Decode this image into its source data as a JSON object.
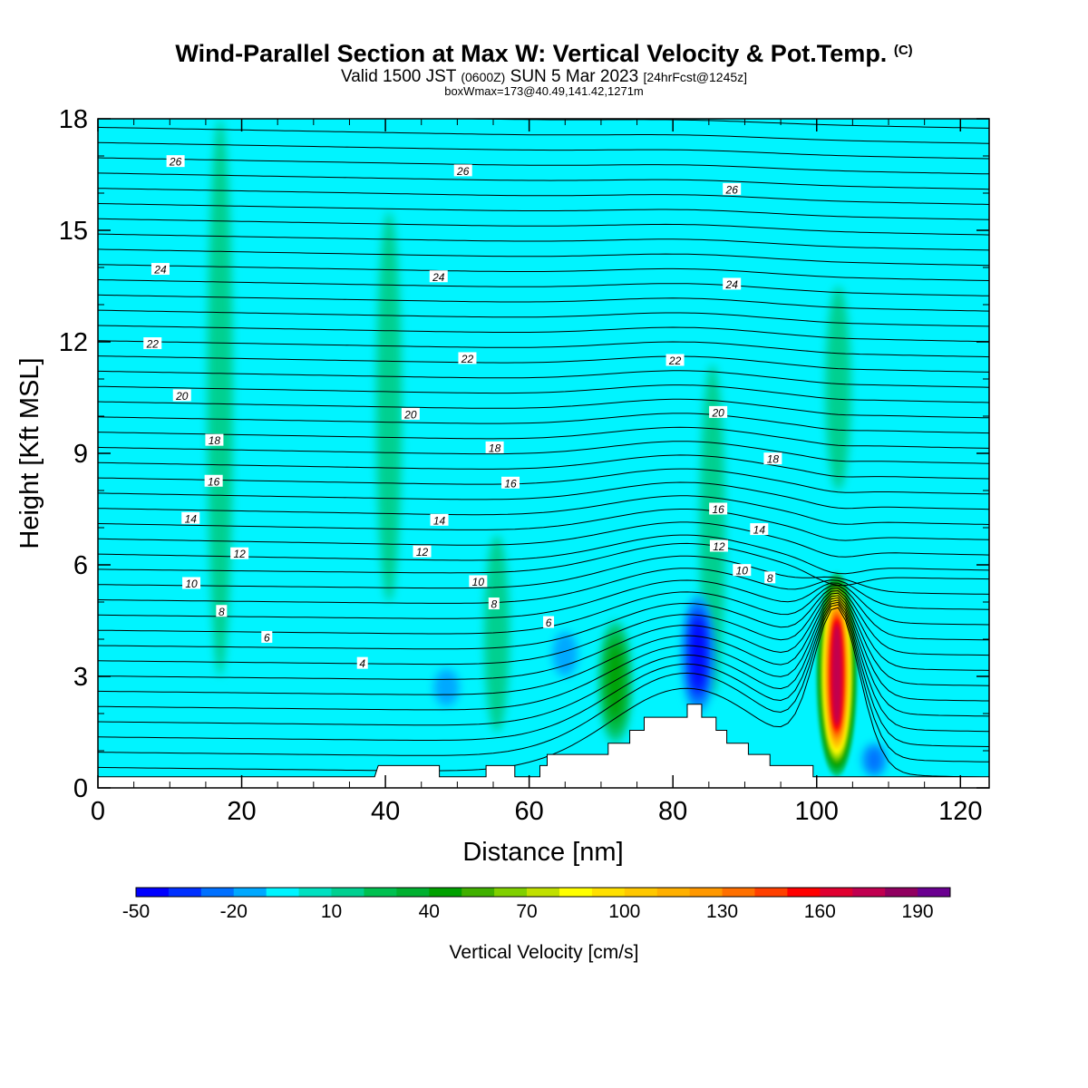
{
  "header": {
    "title": "Wind-Parallel Section at Max W: Vertical Velocity & Pot.Temp.",
    "title_mark": "(C)",
    "valid_a": "Valid 1500 JST",
    "valid_b": "(0600Z)",
    "valid_c": "SUN 5 Mar 2023",
    "valid_d": "[24hrFcst@1245z]",
    "boxline": "boxWmax=173@40.49,141.42,1271m"
  },
  "chart_data": {
    "type": "heatmap",
    "title": "Wind-Parallel Section at Max W: Vertical Velocity & Pot.Temp.",
    "xlabel": "Distance [nm]",
    "ylabel": "Height [Kft MSL]",
    "xlim": [
      0,
      124
    ],
    "ylim": [
      0,
      18
    ],
    "x_ticks": [
      "0",
      "20",
      "40",
      "60",
      "80",
      "100",
      "120"
    ],
    "y_ticks": [
      "0",
      "3",
      "6",
      "9",
      "12",
      "15",
      "18"
    ],
    "background_value_cms": 0,
    "colorbar": {
      "label": "Vertical Velocity [cm/s]",
      "tick_labels": [
        "-50",
        "-20",
        "10",
        "40",
        "70",
        "100",
        "130",
        "160",
        "190"
      ],
      "levels": [
        -50,
        -40,
        -30,
        -20,
        -10,
        0,
        10,
        20,
        30,
        40,
        50,
        60,
        70,
        80,
        90,
        100,
        110,
        120,
        130,
        140,
        150,
        160,
        170,
        180,
        190,
        200
      ],
      "colors": [
        "#0000ff",
        "#0030ff",
        "#0070ff",
        "#00a8ff",
        "#00f4ff",
        "#00e0c0",
        "#00d090",
        "#00c050",
        "#00b030",
        "#00a000",
        "#40b000",
        "#80d000",
        "#c0e000",
        "#ffff00",
        "#ffe000",
        "#ffc800",
        "#ffb000",
        "#ff9800",
        "#ff7000",
        "#ff4000",
        "#ff0000",
        "#e00030",
        "#c00050",
        "#900060",
        "#6a0090"
      ]
    },
    "w_features": [
      {
        "kind": "updraft_core",
        "x": 102.8,
        "z_bottom": 0.3,
        "z_top": 5.8,
        "max_cms": 173
      },
      {
        "kind": "updraft",
        "x": 72,
        "z_bottom": 1.2,
        "z_top": 4.5,
        "max_cms": 45
      },
      {
        "kind": "updraft",
        "x": 55.5,
        "z_bottom": 1.5,
        "z_top": 6.8,
        "max_cms": 15
      },
      {
        "kind": "updraft",
        "x": 85.5,
        "z_bottom": 2.5,
        "z_top": 11.4,
        "max_cms": 15
      },
      {
        "kind": "updraft",
        "x": 103,
        "z_bottom": 8,
        "z_top": 13.5,
        "max_cms": 15
      },
      {
        "kind": "updraft",
        "x": 40.5,
        "z_bottom": 5,
        "z_top": 15.5,
        "max_cms": 12
      },
      {
        "kind": "updraft",
        "x": 17,
        "z_bottom": 3,
        "z_top": 18,
        "max_cms": 12
      },
      {
        "kind": "downdraft",
        "x": 83.5,
        "z_bottom": 2,
        "z_top": 5.2,
        "max_cms": -45
      },
      {
        "kind": "downdraft",
        "x": 48.5,
        "z_bottom": 2.2,
        "z_top": 3.2,
        "max_cms": -15
      },
      {
        "kind": "downdraft",
        "x": 65,
        "z_bottom": 3,
        "z_top": 4.2,
        "max_cms": -15
      },
      {
        "kind": "downdraft",
        "x": 108,
        "z_bottom": 0.3,
        "z_top": 1.2,
        "max_cms": -25
      }
    ],
    "terrain_kft": [
      {
        "x": 0,
        "h": 0.3
      },
      {
        "x": 38.5,
        "h": 0.3
      },
      {
        "x": 39,
        "h": 0.6
      },
      {
        "x": 47.5,
        "h": 0.6
      },
      {
        "x": 47.5,
        "h": 0.3
      },
      {
        "x": 54,
        "h": 0.3
      },
      {
        "x": 54,
        "h": 0.6
      },
      {
        "x": 58,
        "h": 0.6
      },
      {
        "x": 58,
        "h": 0.3
      },
      {
        "x": 61.5,
        "h": 0.3
      },
      {
        "x": 61.5,
        "h": 0.6
      },
      {
        "x": 62.5,
        "h": 0.6
      },
      {
        "x": 62.5,
        "h": 0.9
      },
      {
        "x": 71,
        "h": 0.9
      },
      {
        "x": 71,
        "h": 1.2
      },
      {
        "x": 74,
        "h": 1.2
      },
      {
        "x": 74,
        "h": 1.55
      },
      {
        "x": 76,
        "h": 1.55
      },
      {
        "x": 76,
        "h": 1.9
      },
      {
        "x": 82,
        "h": 1.9
      },
      {
        "x": 82,
        "h": 2.25
      },
      {
        "x": 84,
        "h": 2.25
      },
      {
        "x": 84,
        "h": 1.9
      },
      {
        "x": 86,
        "h": 1.9
      },
      {
        "x": 86,
        "h": 1.55
      },
      {
        "x": 87.5,
        "h": 1.55
      },
      {
        "x": 87.5,
        "h": 1.2
      },
      {
        "x": 90.5,
        "h": 1.2
      },
      {
        "x": 90.5,
        "h": 0.9
      },
      {
        "x": 93.5,
        "h": 0.9
      },
      {
        "x": 93.5,
        "h": 0.6
      },
      {
        "x": 99.5,
        "h": 0.6
      },
      {
        "x": 99.5,
        "h": 0.3
      },
      {
        "x": 124,
        "h": 0.3
      }
    ],
    "theta_contour_labels": [
      {
        "text": "26",
        "x": 10.8,
        "z": 16.85
      },
      {
        "text": "26",
        "x": 50.8,
        "z": 16.6
      },
      {
        "text": "26",
        "x": 88.2,
        "z": 16.1
      },
      {
        "text": "24",
        "x": 8.7,
        "z": 13.95
      },
      {
        "text": "24",
        "x": 47.4,
        "z": 13.75
      },
      {
        "text": "24",
        "x": 88.2,
        "z": 13.55
      },
      {
        "text": "22",
        "x": 7.6,
        "z": 11.95
      },
      {
        "text": "22",
        "x": 51.4,
        "z": 11.55
      },
      {
        "text": "22",
        "x": 80.3,
        "z": 11.5
      },
      {
        "text": "20",
        "x": 11.7,
        "z": 10.55
      },
      {
        "text": "20",
        "x": 43.5,
        "z": 10.05
      },
      {
        "text": "20",
        "x": 86.3,
        "z": 10.1
      },
      {
        "text": "18",
        "x": 16.2,
        "z": 9.35
      },
      {
        "text": "18",
        "x": 55.2,
        "z": 9.15
      },
      {
        "text": "18",
        "x": 93.9,
        "z": 8.85
      },
      {
        "text": "16",
        "x": 16.1,
        "z": 8.25
      },
      {
        "text": "16",
        "x": 57.4,
        "z": 8.2
      },
      {
        "text": "16",
        "x": 86.3,
        "z": 7.5
      },
      {
        "text": "14",
        "x": 12.9,
        "z": 7.25
      },
      {
        "text": "14",
        "x": 47.5,
        "z": 7.2
      },
      {
        "text": "14",
        "x": 92,
        "z": 6.95
      },
      {
        "text": "12",
        "x": 19.7,
        "z": 6.3
      },
      {
        "text": "12",
        "x": 45.1,
        "z": 6.35
      },
      {
        "text": "12",
        "x": 86.4,
        "z": 6.5
      },
      {
        "text": "10",
        "x": 13,
        "z": 5.5
      },
      {
        "text": "10",
        "x": 52.9,
        "z": 5.55
      },
      {
        "text": "10",
        "x": 89.6,
        "z": 5.85
      },
      {
        "text": "8",
        "x": 17.2,
        "z": 4.75
      },
      {
        "text": "8",
        "x": 55.1,
        "z": 4.95
      },
      {
        "text": "8",
        "x": 93.5,
        "z": 5.65
      },
      {
        "text": "6",
        "x": 23.5,
        "z": 4.05
      },
      {
        "text": "6",
        "x": 62.7,
        "z": 4.45
      },
      {
        "text": "4",
        "x": 36.8,
        "z": 3.35
      }
    ]
  }
}
